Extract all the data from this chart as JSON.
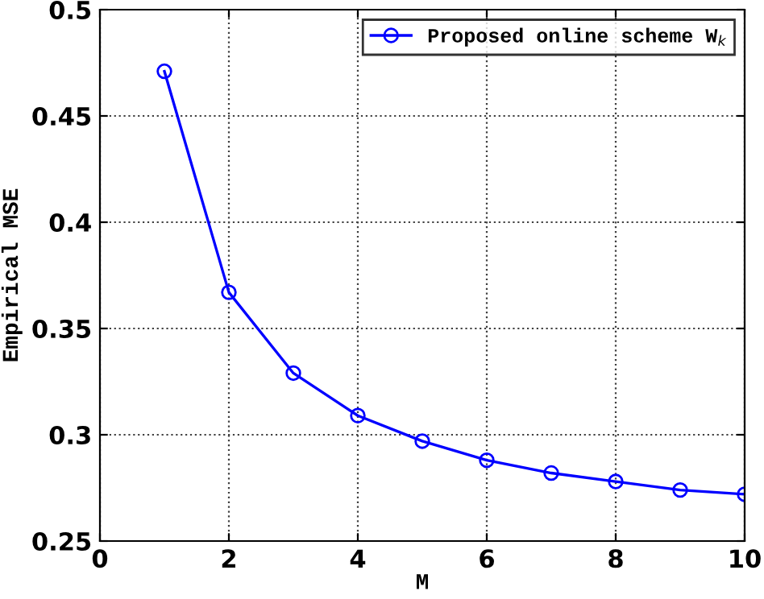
{
  "chart_data": {
    "type": "line",
    "xlabel": "M",
    "ylabel": "Empirical MSE",
    "x": [
      1,
      2,
      3,
      4,
      5,
      6,
      7,
      8,
      9,
      10
    ],
    "series": [
      {
        "name": "Proposed online scheme W$_{k}$",
        "color": "#0000ff",
        "values": [
          0.471,
          0.367,
          0.329,
          0.309,
          0.297,
          0.288,
          0.282,
          0.278,
          0.274,
          0.272
        ]
      }
    ],
    "xlim": [
      0,
      10
    ],
    "xticks": [
      0,
      2,
      4,
      6,
      8,
      10
    ],
    "ylim": [
      0.25,
      0.5
    ],
    "yticks": [
      0.25,
      0.3,
      0.35,
      0.4,
      0.45,
      0.5
    ],
    "grid": true,
    "legend": "top right",
    "marker": "circle",
    "line_style": "solid"
  }
}
